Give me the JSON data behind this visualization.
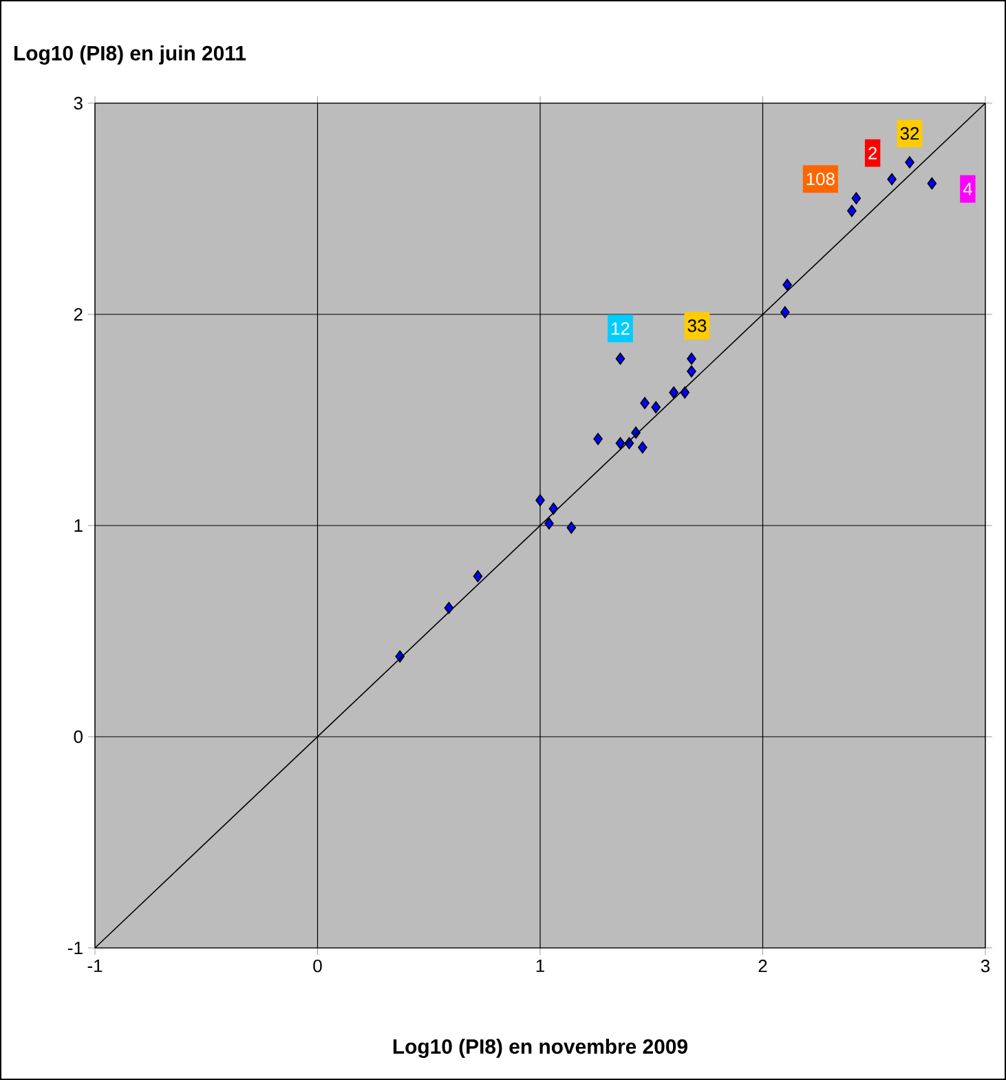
{
  "chart_data": {
    "type": "scatter",
    "xlabel": "Log10 (PI8) en novembre 2009",
    "ylabel": "Log10 (PI8) en juin 2011",
    "xlim": [
      -1,
      3
    ],
    "ylim": [
      -1,
      3
    ],
    "xticks": [
      -1,
      0,
      1,
      2,
      3
    ],
    "yticks": [
      -1,
      0,
      1,
      2,
      3
    ],
    "grid": true,
    "marker": "diamond",
    "series": [
      {
        "color": "#0000ff",
        "x": [
          0.37,
          0.59,
          0.72,
          1.0,
          1.06,
          1.04,
          1.14,
          1.26,
          1.36,
          1.4,
          1.43,
          1.46,
          1.47,
          1.52,
          1.6,
          1.65,
          1.68,
          1.68,
          1.36,
          2.1,
          2.11,
          2.4,
          2.42,
          2.58,
          2.66,
          2.76
        ],
        "values": [
          0.38,
          0.61,
          0.76,
          1.12,
          1.08,
          1.01,
          0.99,
          1.41,
          1.39,
          1.39,
          1.44,
          1.37,
          1.58,
          1.56,
          1.63,
          1.63,
          1.73,
          1.79,
          1.79,
          2.01,
          2.14,
          2.49,
          2.55,
          2.64,
          2.72,
          2.62
        ]
      },
      {
        "type": "line",
        "marker": "none",
        "color": "#000000",
        "x": [
          -1,
          3
        ],
        "values": [
          -1,
          3
        ]
      }
    ],
    "annotations": [
      {
        "text": "12",
        "x": 1.36,
        "y": 1.79
      },
      {
        "text": "33",
        "x": 1.68,
        "y": 1.79
      },
      {
        "text": "108",
        "x": 2.42,
        "y": 2.55
      },
      {
        "text": "2",
        "x": 2.58,
        "y": 2.64
      },
      {
        "text": "32",
        "x": 2.66,
        "y": 2.72
      },
      {
        "text": "4",
        "x": 2.76,
        "y": 2.62
      }
    ]
  }
}
